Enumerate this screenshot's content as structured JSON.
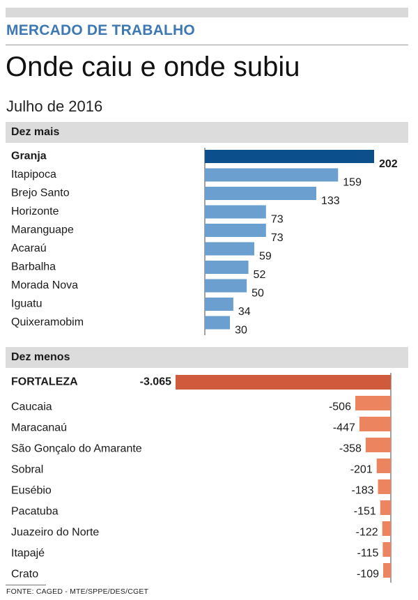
{
  "kicker": "MERCADO DE TRABALHO",
  "headline": "Onde caiu e onde subiu",
  "subtitle": "Julho de 2016",
  "source": "FONTE: CAGED - MTE/SPPE/DES/CGET",
  "colors": {
    "accent_blue": "#3d78b5",
    "bar_blue_highlight": "#0b4f8c",
    "bar_blue": "#6a9fd0",
    "bar_orange_highlight": "#cf5a3c",
    "bar_orange": "#ec8460",
    "section_bg": "#dcdcdc"
  },
  "chart_data": [
    {
      "type": "bar",
      "title": "Dez mais",
      "orientation": "horizontal",
      "highlight": "Granja",
      "categories": [
        "Granja",
        "Itapipoca",
        "Brejo Santo",
        "Horizonte",
        "Maranguape",
        "Acaraú",
        "Barbalha",
        "Morada Nova",
        "Iguatu",
        "Quixeramobim"
      ],
      "values": [
        202,
        159,
        133,
        73,
        73,
        59,
        52,
        50,
        34,
        30
      ],
      "value_labels": [
        "202",
        "159",
        "133",
        "73",
        "73",
        "59",
        "52",
        "50",
        "34",
        "30"
      ]
    },
    {
      "type": "bar",
      "title": "Dez menos",
      "orientation": "horizontal",
      "highlight": "FORTALEZA",
      "categories": [
        "FORTALEZA",
        "Caucaia",
        "Maracanaú",
        "São Gonçalo do Amarante",
        "Sobral",
        "Eusébio",
        "Pacatuba",
        "Juazeiro do Norte",
        "Itapajé",
        "Crato"
      ],
      "values": [
        -3065,
        -506,
        -447,
        -358,
        -201,
        -183,
        -151,
        -122,
        -115,
        -109
      ],
      "value_labels": [
        "-3.065",
        "-506",
        "-447",
        "-358",
        "-201",
        "-183",
        "-151",
        "-122",
        "-115",
        "-109"
      ]
    }
  ]
}
